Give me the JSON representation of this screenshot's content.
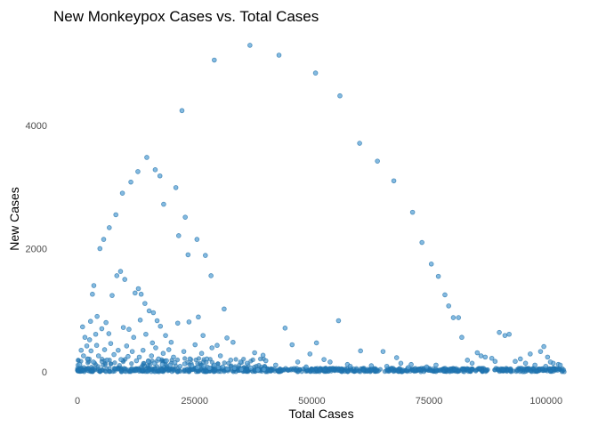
{
  "chart_data": {
    "type": "scatter",
    "title": "New Monkeypox Cases vs. Total Cases",
    "xlabel": "Total Cases",
    "ylabel": "New Cases",
    "xlim": [
      0,
      104000
    ],
    "ylim": [
      0,
      5400
    ],
    "xticks": [
      0,
      25000,
      50000,
      75000,
      100000
    ],
    "xtick_labels": [
      "0",
      "25000",
      "50000",
      "75000",
      "100000"
    ],
    "yticks": [
      0,
      2000,
      4000
    ],
    "ytick_labels": [
      "0",
      "2000",
      "4000"
    ],
    "grid": false,
    "legend": "none",
    "colors": {
      "point_fill": "#5ba3d6",
      "point_stroke": "#1f6fa8",
      "dense_band": "#1f77b4"
    },
    "series": [
      {
        "points": [
          [
            1100,
            730
          ],
          [
            2000,
            420
          ],
          [
            2800,
            820
          ],
          [
            3200,
            1260
          ],
          [
            3500,
            1400
          ],
          [
            4200,
            900
          ],
          [
            4800,
            2000
          ],
          [
            5600,
            2150
          ],
          [
            6800,
            2340
          ],
          [
            8200,
            2550
          ],
          [
            9600,
            2900
          ],
          [
            11400,
            3080
          ],
          [
            12900,
            3250
          ],
          [
            14800,
            3480
          ],
          [
            16600,
            3280
          ],
          [
            17600,
            3180
          ],
          [
            18400,
            2720
          ],
          [
            21000,
            2990
          ],
          [
            21600,
            2210
          ],
          [
            22300,
            4240
          ],
          [
            23000,
            2510
          ],
          [
            23600,
            1900
          ],
          [
            25500,
            2150
          ],
          [
            27300,
            1890
          ],
          [
            28500,
            1560
          ],
          [
            29200,
            5060
          ],
          [
            31300,
            1020
          ],
          [
            36800,
            5300
          ],
          [
            43000,
            5140
          ],
          [
            50800,
            4850
          ],
          [
            56000,
            4480
          ],
          [
            60200,
            3710
          ],
          [
            64000,
            3420
          ],
          [
            67500,
            3100
          ],
          [
            71500,
            2590
          ],
          [
            73500,
            2100
          ],
          [
            75500,
            1750
          ],
          [
            77000,
            1550
          ],
          [
            78400,
            1250
          ],
          [
            79200,
            1070
          ],
          [
            80200,
            880
          ],
          [
            81300,
            880
          ],
          [
            82000,
            560
          ],
          [
            85300,
            310
          ],
          [
            86100,
            260
          ],
          [
            87000,
            240
          ],
          [
            90000,
            640
          ],
          [
            91200,
            590
          ],
          [
            92100,
            610
          ],
          [
            96600,
            290
          ],
          [
            98800,
            330
          ],
          [
            99500,
            410
          ],
          [
            100300,
            240
          ],
          [
            101500,
            140
          ],
          [
            102600,
            120
          ],
          [
            7400,
            1240
          ],
          [
            8400,
            1560
          ],
          [
            9200,
            1630
          ],
          [
            10100,
            1500
          ],
          [
            12300,
            1280
          ],
          [
            13000,
            1350
          ],
          [
            13600,
            1260
          ],
          [
            14400,
            1110
          ],
          [
            15300,
            990
          ],
          [
            16200,
            960
          ],
          [
            17000,
            830
          ],
          [
            17700,
            740
          ],
          [
            18800,
            590
          ],
          [
            20000,
            480
          ],
          [
            21400,
            790
          ],
          [
            23800,
            810
          ],
          [
            25800,
            890
          ],
          [
            26800,
            590
          ],
          [
            28700,
            390
          ],
          [
            29800,
            430
          ],
          [
            31900,
            550
          ],
          [
            33200,
            480
          ],
          [
            37800,
            310
          ],
          [
            39600,
            270
          ],
          [
            44300,
            710
          ],
          [
            45800,
            440
          ],
          [
            49600,
            290
          ],
          [
            51000,
            470
          ],
          [
            52600,
            200
          ],
          [
            55700,
            830
          ],
          [
            57600,
            120
          ],
          [
            60400,
            340
          ],
          [
            65200,
            330
          ],
          [
            68100,
            230
          ],
          [
            71200,
            120
          ],
          [
            2600,
            520
          ],
          [
            3900,
            610
          ],
          [
            5200,
            700
          ],
          [
            6100,
            800
          ],
          [
            6700,
            620
          ],
          [
            9800,
            720
          ],
          [
            11000,
            690
          ],
          [
            10500,
            420
          ],
          [
            12000,
            560
          ],
          [
            13400,
            840
          ],
          [
            14600,
            610
          ],
          [
            16000,
            470
          ],
          [
            16700,
            390
          ],
          [
            18300,
            300
          ],
          [
            19500,
            360
          ],
          [
            20500,
            240
          ],
          [
            22700,
            330
          ],
          [
            24000,
            210
          ],
          [
            25100,
            440
          ],
          [
            26500,
            300
          ],
          [
            27600,
            210
          ],
          [
            30500,
            260
          ],
          [
            32700,
            190
          ],
          [
            34800,
            160
          ],
          [
            36200,
            140
          ],
          [
            40200,
            180
          ],
          [
            42300,
            110
          ],
          [
            47000,
            160
          ],
          [
            48800,
            80
          ],
          [
            53900,
            160
          ],
          [
            58200,
            90
          ],
          [
            62700,
            100
          ],
          [
            66000,
            90
          ],
          [
            69000,
            140
          ],
          [
            70600,
            70
          ],
          [
            74500,
            80
          ],
          [
            76500,
            110
          ],
          [
            83200,
            190
          ],
          [
            84200,
            140
          ],
          [
            88400,
            220
          ],
          [
            89100,
            170
          ],
          [
            93400,
            170
          ],
          [
            94500,
            210
          ],
          [
            95600,
            140
          ],
          [
            97600,
            110
          ],
          [
            99900,
            90
          ],
          [
            100900,
            160
          ],
          [
            103000,
            110
          ],
          [
            500,
            120
          ],
          [
            800,
            350
          ],
          [
            1300,
            260
          ],
          [
            1600,
            560
          ],
          [
            2200,
            210
          ],
          [
            2900,
            340
          ],
          [
            3400,
            160
          ],
          [
            4100,
            430
          ],
          [
            4500,
            260
          ],
          [
            5800,
            360
          ],
          [
            6300,
            190
          ],
          [
            7100,
            460
          ],
          [
            7800,
            280
          ],
          [
            8700,
            350
          ],
          [
            9300,
            200
          ],
          [
            10800,
            250
          ],
          [
            11700,
            330
          ],
          [
            12600,
            180
          ],
          [
            13200,
            240
          ],
          [
            14000,
            350
          ],
          [
            15100,
            170
          ],
          [
            15800,
            260
          ],
          [
            16400,
            140
          ],
          [
            17300,
            210
          ],
          [
            18100,
            120
          ],
          [
            19000,
            180
          ],
          [
            19800,
            110
          ],
          [
            20800,
            150
          ],
          [
            21900,
            90
          ],
          [
            22900,
            130
          ],
          [
            24400,
            100
          ],
          [
            25600,
            70
          ],
          [
            27000,
            90
          ],
          [
            28200,
            60
          ],
          [
            29200,
            110
          ],
          [
            30100,
            70
          ],
          [
            31000,
            80
          ],
          [
            32000,
            50
          ],
          [
            33500,
            60
          ],
          [
            35000,
            40
          ],
          [
            37000,
            60
          ],
          [
            38500,
            30
          ],
          [
            39800,
            40
          ]
        ],
        "dense_band": {
          "x_range": [
            0,
            104000
          ],
          "y_range": [
            0,
            60
          ]
        }
      }
    ]
  }
}
